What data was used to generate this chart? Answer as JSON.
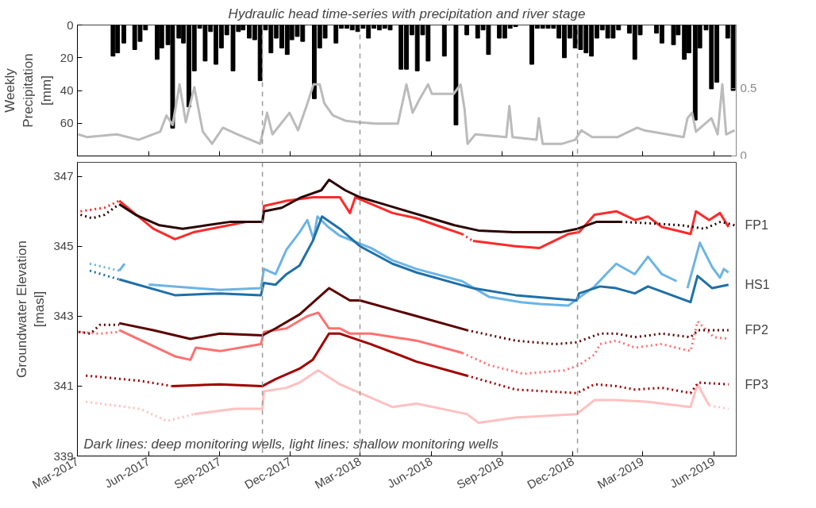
{
  "chart_data": [
    {
      "type": "bar",
      "title": "Hydraulic head time-series with precipitation and river stage",
      "ylabel": "Weekly\nPrecipitation\n[mm]",
      "xlim": [
        "2017-03-01",
        "2019-06-30"
      ],
      "ylim": [
        80,
        0
      ],
      "yticks": [
        0,
        20,
        40,
        60
      ],
      "y2lim": [
        0,
        0.97
      ],
      "y2ticks": [
        0,
        0.5
      ],
      "tick_labels": "y",
      "grid": false,
      "xticks": [
        {
          "value": "2017-03-01",
          "label": null
        },
        {
          "value": "2017-06-01",
          "label": null
        },
        {
          "value": "2017-09-01",
          "label": null
        },
        {
          "value": "2017-12-01",
          "label": null
        },
        {
          "value": "2018-03-01",
          "label": null
        },
        {
          "value": "2018-06-01",
          "label": null
        },
        {
          "value": "2018-09-01",
          "label": null
        },
        {
          "value": "2018-12-01",
          "label": null
        },
        {
          "value": "2019-03-01",
          "label": null
        },
        {
          "value": "2019-06-01",
          "label": null
        }
      ],
      "ref_lines": [
        {
          "axis": "x",
          "value": "2017-10-26",
          "label": null,
          "color": "#999999",
          "line_style": "dashed"
        },
        {
          "axis": "x",
          "value": "2018-03-01",
          "label": null,
          "color": "#999999",
          "line_style": "dashed"
        },
        {
          "axis": "x",
          "value": "2018-12-07",
          "label": null,
          "color": "#999999",
          "line_style": "dashed"
        }
      ],
      "series": [
        {
          "type": "bar",
          "color": "#000000",
          "x": [
            "2017-04-16",
            "2017-04-22",
            "2017-04-30",
            "2017-05-14",
            "2017-05-21",
            "2017-05-28",
            "2017-06-12",
            "2017-06-18",
            "2017-06-26",
            "2017-07-02",
            "2017-07-10",
            "2017-07-16",
            "2017-07-23",
            "2017-07-30",
            "2017-08-06",
            "2017-08-13",
            "2017-08-20",
            "2017-08-27",
            "2017-09-03",
            "2017-09-10",
            "2017-09-18",
            "2017-09-25",
            "2017-10-01",
            "2017-10-09",
            "2017-10-16",
            "2017-10-23",
            "2017-10-30",
            "2017-11-06",
            "2017-11-13",
            "2017-11-20",
            "2017-11-27",
            "2017-12-03",
            "2017-12-10",
            "2017-12-17",
            "2018-01-01",
            "2018-01-08",
            "2018-01-15",
            "2018-01-29",
            "2018-02-05",
            "2018-02-12",
            "2018-02-19",
            "2018-02-26",
            "2018-03-05",
            "2018-03-12",
            "2018-03-19",
            "2018-03-26",
            "2018-04-02",
            "2018-04-09",
            "2018-04-23",
            "2018-04-30",
            "2018-05-07",
            "2018-05-14",
            "2018-05-21",
            "2018-05-28",
            "2018-06-18",
            "2018-07-03",
            "2018-07-17",
            "2018-07-31",
            "2018-08-07",
            "2018-08-14",
            "2018-08-28",
            "2018-09-04",
            "2018-09-11",
            "2018-09-18",
            "2018-10-09",
            "2018-10-16",
            "2018-10-23",
            "2018-10-30",
            "2018-11-06",
            "2018-11-13",
            "2018-11-20",
            "2018-11-27",
            "2018-12-04",
            "2018-12-11",
            "2018-12-18",
            "2018-12-25",
            "2019-01-01",
            "2019-01-08",
            "2019-01-15",
            "2019-01-22",
            "2019-01-29",
            "2019-02-12",
            "2019-02-19",
            "2019-02-26",
            "2019-03-19",
            "2019-03-26",
            "2019-04-10",
            "2019-04-16",
            "2019-04-24",
            "2019-04-30",
            "2019-05-08",
            "2019-05-14",
            "2019-05-22",
            "2019-05-29",
            "2019-06-05",
            "2019-06-19",
            "2019-06-26"
          ],
          "values": [
            19,
            17,
            11,
            15,
            10,
            3,
            21,
            14,
            12,
            63,
            8,
            11,
            50,
            28,
            2,
            22,
            4,
            24,
            14,
            6,
            28,
            4,
            3,
            8,
            9,
            34,
            3,
            17,
            8,
            14,
            18,
            9,
            7,
            10,
            45,
            14,
            8,
            11,
            2,
            2,
            3,
            4,
            2,
            8,
            2,
            3,
            2,
            3,
            27,
            27,
            6,
            28,
            6,
            22,
            19,
            61,
            6,
            8,
            3,
            18,
            8,
            8,
            2,
            1,
            24,
            2,
            2,
            2,
            2,
            8,
            20,
            8,
            14,
            15,
            17,
            19,
            8,
            3,
            8,
            8,
            3,
            5,
            21,
            6,
            5,
            11,
            12,
            6,
            21,
            17,
            58,
            14,
            3,
            39,
            35,
            8,
            40
          ]
        },
        {
          "type": "line",
          "axis": "y2",
          "color": "#bbbbbb",
          "x": [
            "2017-03-02",
            "2017-03-13",
            "2017-04-21",
            "2017-05-19",
            "2017-06-16",
            "2017-06-24",
            "2017-07-02",
            "2017-07-11",
            "2017-07-19",
            "2017-07-30",
            "2017-08-10",
            "2017-08-22",
            "2017-09-05",
            "2017-09-24",
            "2017-10-23",
            "2017-10-28",
            "2017-11-01",
            "2017-11-08",
            "2017-11-30",
            "2017-12-11",
            "2017-12-22",
            "2017-12-31",
            "2018-01-08",
            "2018-01-14",
            "2018-01-25",
            "2018-02-11",
            "2018-02-27",
            "2018-03-22",
            "2018-04-19",
            "2018-04-30",
            "2018-05-08",
            "2018-05-17",
            "2018-05-28",
            "2018-06-02",
            "2018-06-13",
            "2018-06-30",
            "2018-07-09",
            "2018-07-14",
            "2018-07-18",
            "2018-07-28",
            "2018-09-06",
            "2018-09-10",
            "2018-09-14",
            "2018-10-15",
            "2018-10-18",
            "2018-10-23",
            "2018-11-17",
            "2018-12-04",
            "2018-12-12",
            "2018-12-26",
            "2019-01-28",
            "2019-02-22",
            "2019-03-03",
            "2019-04-23",
            "2019-04-28",
            "2019-05-04",
            "2019-05-09",
            "2019-05-29",
            "2019-06-06",
            "2019-06-12",
            "2019-06-17",
            "2019-06-28"
          ],
          "values": [
            0.16,
            0.14,
            0.16,
            0.12,
            0.18,
            0.3,
            0.23,
            0.53,
            0.25,
            0.51,
            0.18,
            0.09,
            0.21,
            0.16,
            0.09,
            0.21,
            0.32,
            0.16,
            0.32,
            0.19,
            0.37,
            0.53,
            0.53,
            0.39,
            0.3,
            0.26,
            0.25,
            0.24,
            0.24,
            0.53,
            0.32,
            0.42,
            0.53,
            0.46,
            0.46,
            0.46,
            0.53,
            0.35,
            0.09,
            0.16,
            0.14,
            0.37,
            0.14,
            0.12,
            0.28,
            0.09,
            0.09,
            0.12,
            0.19,
            0.14,
            0.14,
            0.21,
            0.19,
            0.14,
            0.28,
            0.32,
            0.18,
            0.28,
            0.16,
            0.53,
            0.16,
            0.19
          ]
        }
      ]
    },
    {
      "type": "line",
      "ylabel": "Groundwater Elevation\n[masl]",
      "xlim": [
        "2017-03-01",
        "2019-06-30"
      ],
      "ylim": [
        339,
        347.4
      ],
      "yticks": [
        339,
        341,
        343,
        345,
        347
      ],
      "grid": false,
      "xticks": [
        {
          "value": "2017-03-01",
          "label": "Mar-2017"
        },
        {
          "value": "2017-06-01",
          "label": "Jun-2017"
        },
        {
          "value": "2017-09-01",
          "label": "Sep-2017"
        },
        {
          "value": "2017-12-01",
          "label": "Dec-2017"
        },
        {
          "value": "2018-03-01",
          "label": "Mar-2018"
        },
        {
          "value": "2018-06-01",
          "label": "Jun-2018"
        },
        {
          "value": "2018-09-01",
          "label": "Sep-2018"
        },
        {
          "value": "2018-12-01",
          "label": "Dec-2018"
        },
        {
          "value": "2019-03-01",
          "label": "Mar-2019"
        },
        {
          "value": "2019-06-01",
          "label": "Jun-2019"
        }
      ],
      "ref_lines": [
        {
          "axis": "x",
          "value": "2017-10-26",
          "label": null,
          "color": "#999999",
          "line_style": "dashed"
        },
        {
          "axis": "x",
          "value": "2018-03-01",
          "label": null,
          "color": "#999999",
          "line_style": "dashed"
        },
        {
          "axis": "x",
          "value": "2018-12-07",
          "label": null,
          "color": "#999999",
          "line_style": "dashed"
        }
      ],
      "annotations": [
        "Dark lines: deep monitoring wells, light lines: shallow monitoring wells"
      ],
      "series": [
        {
          "color": "#ff2a2a",
          "line_style": "dotted",
          "x": [
            "2017-03-05",
            "2017-04-05",
            "2017-04-24"
          ],
          "values": [
            346.0,
            346.1,
            346.3
          ]
        },
        {
          "color": "#ff2a2a",
          "line_style": "solid",
          "x": [
            "2017-04-24",
            "2017-06-07",
            "2017-07-05",
            "2017-07-29",
            "2017-09-01",
            "2017-10-06",
            "2017-10-26",
            "2017-10-28",
            "2017-11-26",
            "2017-12-30",
            "2018-02-03",
            "2018-02-16",
            "2018-02-23",
            "2018-04-12",
            "2018-05-13",
            "2018-06-14",
            "2018-07-11"
          ],
          "values": [
            346.3,
            345.5,
            345.2,
            345.4,
            345.55,
            345.7,
            345.7,
            346.15,
            346.3,
            346.4,
            346.4,
            345.95,
            346.4,
            345.95,
            345.8,
            345.55,
            345.35
          ]
        },
        {
          "color": "#ff2a2a",
          "line_style": "dotted",
          "x": [
            "2018-07-11",
            "2018-07-25"
          ],
          "values": [
            345.35,
            345.15
          ]
        },
        {
          "color": "#ff2a2a",
          "line_style": "solid",
          "x": [
            "2018-07-25",
            "2018-09-18",
            "2018-10-19",
            "2018-11-25",
            "2018-12-09",
            "2018-12-29",
            "2019-01-26",
            "2019-02-19",
            "2019-03-08",
            "2019-03-26",
            "2019-05-02",
            "2019-05-09",
            "2019-05-26",
            "2019-06-09",
            "2019-06-20"
          ],
          "values": [
            345.15,
            345.0,
            344.95,
            345.35,
            345.4,
            345.9,
            346.0,
            345.75,
            345.85,
            345.55,
            345.35,
            346.0,
            345.75,
            345.95,
            345.55
          ]
        },
        {
          "color": "#2b0505",
          "line_style": "dotted",
          "x": [
            "2017-03-05",
            "2017-03-20",
            "2017-04-05",
            "2017-04-24"
          ],
          "values": [
            345.9,
            345.8,
            345.9,
            346.2
          ]
        },
        {
          "color": "#2b0505",
          "line_style": "solid",
          "x": [
            "2017-04-24",
            "2017-05-15",
            "2017-06-15",
            "2017-07-15",
            "2017-08-15",
            "2017-09-15",
            "2017-10-15",
            "2017-10-26",
            "2017-10-28",
            "2017-11-20",
            "2017-12-15",
            "2018-01-10",
            "2018-01-20",
            "2018-02-10",
            "2018-03-01",
            "2018-04-01",
            "2018-05-01",
            "2018-06-01",
            "2018-07-01",
            "2018-08-01",
            "2018-09-15",
            "2018-10-15",
            "2018-11-15",
            "2018-12-07",
            "2019-01-01",
            "2019-02-01"
          ],
          "values": [
            346.2,
            345.9,
            345.6,
            345.5,
            345.6,
            345.7,
            345.7,
            345.7,
            346.0,
            346.1,
            346.4,
            346.6,
            346.9,
            346.6,
            346.4,
            346.2,
            346.0,
            345.8,
            345.6,
            345.45,
            345.4,
            345.4,
            345.4,
            345.5,
            345.7,
            345.7
          ]
        },
        {
          "name": "FP1",
          "color": "#2b0505",
          "line_style": "dotted",
          "x": [
            "2019-02-01",
            "2019-03-15",
            "2019-04-20",
            "2019-05-20",
            "2019-06-10",
            "2019-06-28"
          ],
          "values": [
            345.7,
            345.65,
            345.6,
            345.5,
            345.7,
            345.6
          ]
        },
        {
          "color": "#6cb4e4",
          "line_style": "dotted",
          "x": [
            "2017-03-17",
            "2017-04-24"
          ],
          "values": [
            344.5,
            344.3
          ]
        },
        {
          "color": "#6cb4e4",
          "line_style": "solid",
          "x": [
            "2017-04-24",
            "2017-05-01",
            "2017-05-05",
            "2017-06-01",
            "2017-06-05",
            "2017-09-01",
            "2017-10-24",
            "2017-10-28",
            "2017-11-12",
            "2017-11-26",
            "2017-12-13",
            "2017-12-23",
            "2017-12-31",
            "2018-01-05",
            "2018-01-19",
            "2018-02-03",
            "2018-03-15",
            "2018-04-12",
            "2018-05-13",
            "2018-07-11",
            "2018-08-15",
            "2018-09-25",
            "2018-10-20",
            "2018-11-25",
            "2018-12-29",
            "2019-01-15",
            "2019-01-26",
            "2019-02-19",
            "2019-03-08",
            "2019-03-26",
            "2019-04-14",
            "2019-04-20",
            "2019-04-28",
            "2019-05-14",
            "2019-05-30",
            "2019-06-09",
            "2019-06-14",
            "2019-06-20"
          ],
          "values": [
            344.3,
            344.5,
            null,
            343.9,
            343.9,
            343.75,
            343.8,
            344.35,
            344.2,
            344.9,
            345.4,
            345.75,
            345.2,
            345.85,
            345.55,
            345.3,
            344.95,
            344.6,
            344.35,
            344.0,
            343.55,
            343.4,
            343.35,
            343.3,
            343.85,
            344.25,
            344.5,
            344.2,
            344.7,
            344.2,
            344.0,
            null,
            343.8,
            345.1,
            344.4,
            344.1,
            344.35,
            344.25
          ]
        },
        {
          "color": "#1f6fa8",
          "line_style": "dotted",
          "x": [
            "2017-03-17",
            "2017-04-24"
          ],
          "values": [
            344.3,
            344.05
          ]
        },
        {
          "name": "HS1",
          "color": "#1f6fa8",
          "line_style": "solid",
          "x": [
            "2017-04-24",
            "2017-07-05",
            "2017-09-01",
            "2017-10-24",
            "2017-10-28",
            "2017-11-12",
            "2017-11-26",
            "2017-12-13",
            "2017-12-30",
            "2018-01-11",
            "2018-02-03",
            "2018-03-01",
            "2018-04-12",
            "2018-05-13",
            "2018-07-25",
            "2018-09-18",
            "2018-12-06",
            "2018-12-09",
            "2019-01-05",
            "2019-01-26",
            "2019-02-19",
            "2019-03-08",
            "2019-05-02",
            "2019-05-11",
            "2019-05-30",
            "2019-06-20"
          ],
          "values": [
            344.05,
            343.6,
            343.65,
            343.6,
            343.95,
            343.9,
            344.2,
            344.45,
            345.15,
            345.85,
            345.5,
            345.0,
            344.5,
            344.25,
            343.8,
            343.6,
            343.45,
            343.65,
            343.85,
            343.8,
            343.65,
            343.85,
            343.4,
            344.15,
            343.8,
            343.9
          ]
        },
        {
          "color": "#ff7070",
          "line_style": "dotted",
          "x": [
            "2017-03-01",
            "2017-03-30",
            "2017-04-24"
          ],
          "values": [
            342.55,
            342.5,
            342.55
          ]
        },
        {
          "color": "#ff7070",
          "line_style": "solid",
          "x": [
            "2017-04-24",
            "2017-07-05",
            "2017-07-25",
            "2017-08-01",
            "2017-09-01",
            "2017-10-24",
            "2017-10-28",
            "2017-11-26",
            "2017-12-23",
            "2018-01-06",
            "2018-01-20",
            "2018-02-03",
            "2018-02-16",
            "2018-03-15",
            "2018-05-13",
            "2018-07-11"
          ],
          "values": [
            342.6,
            341.85,
            341.75,
            342.1,
            342.0,
            342.2,
            342.55,
            342.65,
            343.0,
            343.1,
            342.65,
            342.65,
            342.5,
            342.5,
            342.3,
            341.95
          ]
        },
        {
          "color": "#ff7070",
          "line_style": "dotted",
          "x": [
            "2018-07-11",
            "2018-08-15",
            "2018-09-28",
            "2018-11-20",
            "2018-12-09",
            "2018-12-29",
            "2019-01-05",
            "2019-01-26",
            "2019-02-19",
            "2019-03-26",
            "2019-05-02",
            "2019-05-11",
            "2019-06-01",
            "2019-06-20"
          ],
          "values": [
            341.95,
            341.6,
            341.35,
            341.45,
            341.6,
            341.9,
            342.2,
            342.3,
            342.1,
            342.2,
            342.0,
            342.85,
            342.4,
            342.35
          ]
        },
        {
          "color": "#5a0000",
          "line_style": "dotted",
          "x": [
            "2017-03-03",
            "2017-03-18",
            "2017-03-30",
            "2017-04-24"
          ],
          "values": [
            342.55,
            342.5,
            342.75,
            342.75
          ]
        },
        {
          "color": "#5a0000",
          "line_style": "solid",
          "x": [
            "2017-04-24",
            "2017-06-07",
            "2017-07-25",
            "2017-09-01",
            "2017-10-26",
            "2017-11-12",
            "2017-12-13",
            "2018-01-20",
            "2018-02-16",
            "2018-03-01",
            "2018-05-13",
            "2018-07-17"
          ],
          "values": [
            342.8,
            342.6,
            342.35,
            342.5,
            342.45,
            342.65,
            343.05,
            343.8,
            343.45,
            343.45,
            343.0,
            342.6
          ]
        },
        {
          "name": "FP2",
          "color": "#5a0000",
          "line_style": "dotted",
          "x": [
            "2018-07-17",
            "2018-09-18",
            "2018-11-08",
            "2018-12-06",
            "2019-01-05",
            "2019-01-26",
            "2019-02-19",
            "2019-03-26",
            "2019-05-02",
            "2019-05-12",
            "2019-06-20"
          ],
          "values": [
            342.6,
            342.3,
            342.2,
            342.25,
            342.5,
            342.5,
            342.4,
            342.5,
            342.4,
            342.6,
            342.6
          ]
        },
        {
          "color": "#ffc0c0",
          "line_style": "dotted",
          "x": [
            "2017-03-12",
            "2017-05-21",
            "2017-06-25",
            "2017-07-30"
          ],
          "values": [
            340.55,
            340.35,
            340.0,
            340.2
          ]
        },
        {
          "color": "#ffc0c0",
          "line_style": "solid",
          "x": [
            "2017-07-30",
            "2017-09-20",
            "2017-10-26",
            "2017-10-28",
            "2017-11-26",
            "2017-12-13",
            "2018-01-06",
            "2018-02-03",
            "2018-03-01",
            "2018-04-12",
            "2018-05-13",
            "2018-07-17",
            "2018-08-01",
            "2018-09-18",
            "2018-12-06",
            "2018-12-29",
            "2019-01-26",
            "2019-03-08",
            "2019-05-02",
            "2019-05-11",
            "2019-05-26"
          ],
          "values": [
            340.2,
            340.35,
            340.35,
            340.85,
            340.95,
            341.1,
            341.45,
            341.05,
            340.8,
            340.4,
            340.5,
            340.2,
            339.95,
            340.1,
            340.2,
            340.6,
            340.6,
            340.55,
            340.4,
            341.05,
            340.45
          ]
        },
        {
          "color": "#ffc0c0",
          "line_style": "dotted",
          "x": [
            "2019-05-26",
            "2019-06-20"
          ],
          "values": [
            340.45,
            340.35
          ]
        },
        {
          "color": "#a00000",
          "line_style": "dotted",
          "x": [
            "2017-03-12",
            "2017-05-21",
            "2017-07-01"
          ],
          "values": [
            341.3,
            341.15,
            341.0
          ]
        },
        {
          "color": "#a00000",
          "line_style": "solid",
          "x": [
            "2017-07-01",
            "2017-09-01",
            "2017-10-26",
            "2017-11-12",
            "2017-12-13",
            "2017-12-30",
            "2018-01-20",
            "2018-02-03",
            "2018-03-15",
            "2018-05-13",
            "2018-07-17"
          ],
          "values": [
            341.0,
            341.05,
            341.0,
            341.2,
            341.5,
            341.75,
            342.5,
            342.5,
            342.2,
            341.7,
            341.3
          ]
        },
        {
          "name": "FP3",
          "color": "#a00000",
          "line_style": "dotted",
          "x": [
            "2018-07-17",
            "2018-09-18",
            "2018-12-06",
            "2018-12-29",
            "2019-01-26",
            "2019-02-19",
            "2019-03-26",
            "2019-05-02",
            "2019-05-12",
            "2019-06-20"
          ],
          "values": [
            341.3,
            340.9,
            340.8,
            341.05,
            341.0,
            340.9,
            340.95,
            340.8,
            341.1,
            341.05
          ]
        }
      ]
    }
  ]
}
